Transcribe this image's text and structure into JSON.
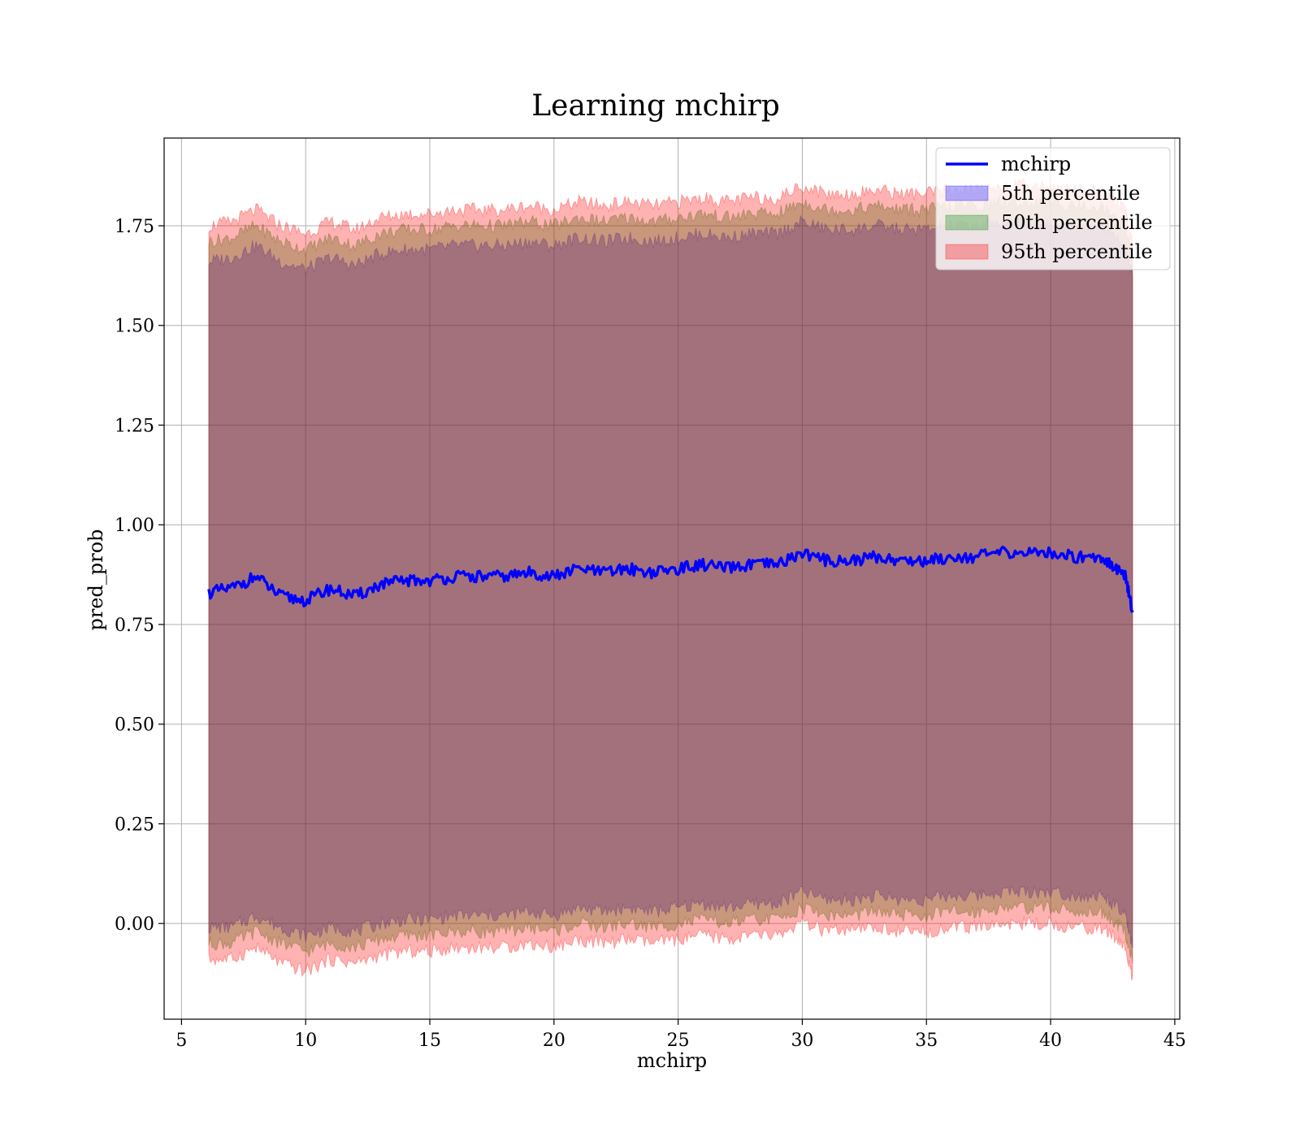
{
  "chart_data": {
    "type": "line",
    "title": "Learning mchirp",
    "xlabel": "mchirp",
    "ylabel": "pred_prob",
    "xlim": [
      4.3,
      45.2
    ],
    "ylim": [
      -0.24,
      1.97
    ],
    "x_ticks": [
      5,
      10,
      15,
      20,
      25,
      30,
      35,
      40,
      45
    ],
    "y_ticks": [
      0.0,
      0.25,
      0.5,
      0.75,
      1.0,
      1.25,
      1.5,
      1.75
    ],
    "x_tick_labels": [
      "5",
      "10",
      "15",
      "20",
      "25",
      "30",
      "35",
      "40",
      "45"
    ],
    "y_tick_labels": [
      "0.00",
      "0.25",
      "0.50",
      "0.75",
      "1.00",
      "1.25",
      "1.50",
      "1.75"
    ],
    "grid": true,
    "legend_position": "top-right",
    "x": [
      6.1,
      7.0,
      8.0,
      9.0,
      10.0,
      11.0,
      12.0,
      13.0,
      14.0,
      15.0,
      16.0,
      17.0,
      18.0,
      19.0,
      20.0,
      21.0,
      22.0,
      23.0,
      24.0,
      25.0,
      26.0,
      27.0,
      28.0,
      29.0,
      30.0,
      31.0,
      32.0,
      33.0,
      34.0,
      35.0,
      36.0,
      37.0,
      38.0,
      39.0,
      40.0,
      41.0,
      42.0,
      42.5,
      43.0,
      43.3
    ],
    "series": [
      {
        "name": "mchirp",
        "kind": "line",
        "color": "#0000ff",
        "values": [
          0.83,
          0.84,
          0.87,
          0.82,
          0.81,
          0.84,
          0.82,
          0.85,
          0.86,
          0.86,
          0.87,
          0.87,
          0.87,
          0.88,
          0.87,
          0.89,
          0.88,
          0.89,
          0.88,
          0.89,
          0.9,
          0.89,
          0.9,
          0.9,
          0.93,
          0.91,
          0.91,
          0.92,
          0.91,
          0.91,
          0.92,
          0.92,
          0.93,
          0.93,
          0.93,
          0.92,
          0.92,
          0.9,
          0.87,
          0.78
        ]
      },
      {
        "name": "5th percentile",
        "kind": "band",
        "color": "#0000ff",
        "lower": [
          -0.01,
          -0.01,
          0.02,
          -0.01,
          -0.03,
          -0.01,
          -0.02,
          0.0,
          0.01,
          0.01,
          0.02,
          0.02,
          0.02,
          0.03,
          0.02,
          0.04,
          0.03,
          0.04,
          0.03,
          0.04,
          0.05,
          0.04,
          0.05,
          0.05,
          0.08,
          0.06,
          0.06,
          0.07,
          0.06,
          0.06,
          0.07,
          0.07,
          0.08,
          0.08,
          0.08,
          0.07,
          0.07,
          0.05,
          0.02,
          -0.06
        ],
        "upper": [
          1.66,
          1.67,
          1.7,
          1.66,
          1.64,
          1.67,
          1.65,
          1.68,
          1.69,
          1.69,
          1.7,
          1.7,
          1.7,
          1.71,
          1.7,
          1.72,
          1.71,
          1.72,
          1.71,
          1.72,
          1.73,
          1.72,
          1.73,
          1.73,
          1.76,
          1.74,
          1.74,
          1.75,
          1.74,
          1.74,
          1.75,
          1.75,
          1.76,
          1.76,
          1.76,
          1.75,
          1.75,
          1.73,
          1.7,
          1.62
        ]
      },
      {
        "name": "50th percentile",
        "kind": "band",
        "color": "#008000",
        "lower": [
          -0.05,
          -0.05,
          -0.02,
          -0.05,
          -0.07,
          -0.05,
          -0.06,
          -0.04,
          -0.03,
          -0.03,
          -0.02,
          -0.02,
          -0.02,
          -0.01,
          -0.02,
          0.0,
          -0.01,
          0.0,
          -0.01,
          0.0,
          0.01,
          0.0,
          0.01,
          0.01,
          0.04,
          0.02,
          0.02,
          0.03,
          0.02,
          0.02,
          0.03,
          0.03,
          0.04,
          0.04,
          0.04,
          0.03,
          0.03,
          0.01,
          -0.02,
          -0.1
        ],
        "upper": [
          1.71,
          1.72,
          1.75,
          1.71,
          1.69,
          1.72,
          1.7,
          1.73,
          1.74,
          1.74,
          1.75,
          1.75,
          1.75,
          1.76,
          1.75,
          1.77,
          1.76,
          1.77,
          1.76,
          1.77,
          1.78,
          1.77,
          1.78,
          1.78,
          1.81,
          1.79,
          1.79,
          1.8,
          1.79,
          1.79,
          1.8,
          1.8,
          1.81,
          1.81,
          1.81,
          1.8,
          1.8,
          1.78,
          1.75,
          1.67
        ]
      },
      {
        "name": "95th percentile",
        "kind": "band",
        "color": "#ff0000",
        "lower": [
          -0.09,
          -0.09,
          -0.06,
          -0.1,
          -0.12,
          -0.09,
          -0.1,
          -0.08,
          -0.07,
          -0.07,
          -0.06,
          -0.06,
          -0.06,
          -0.05,
          -0.06,
          -0.04,
          -0.05,
          -0.04,
          -0.05,
          -0.04,
          -0.03,
          -0.04,
          -0.03,
          -0.03,
          0.0,
          -0.02,
          -0.02,
          -0.01,
          -0.02,
          -0.02,
          -0.01,
          -0.01,
          0.0,
          0.0,
          0.0,
          -0.01,
          -0.01,
          -0.03,
          -0.06,
          -0.14
        ],
        "upper": [
          1.75,
          1.76,
          1.79,
          1.75,
          1.73,
          1.76,
          1.74,
          1.77,
          1.78,
          1.78,
          1.79,
          1.79,
          1.79,
          1.8,
          1.79,
          1.81,
          1.8,
          1.81,
          1.8,
          1.81,
          1.82,
          1.81,
          1.82,
          1.82,
          1.85,
          1.83,
          1.83,
          1.84,
          1.83,
          1.83,
          1.84,
          1.84,
          1.85,
          1.85,
          1.85,
          1.84,
          1.84,
          1.82,
          1.79,
          1.71
        ]
      }
    ]
  }
}
